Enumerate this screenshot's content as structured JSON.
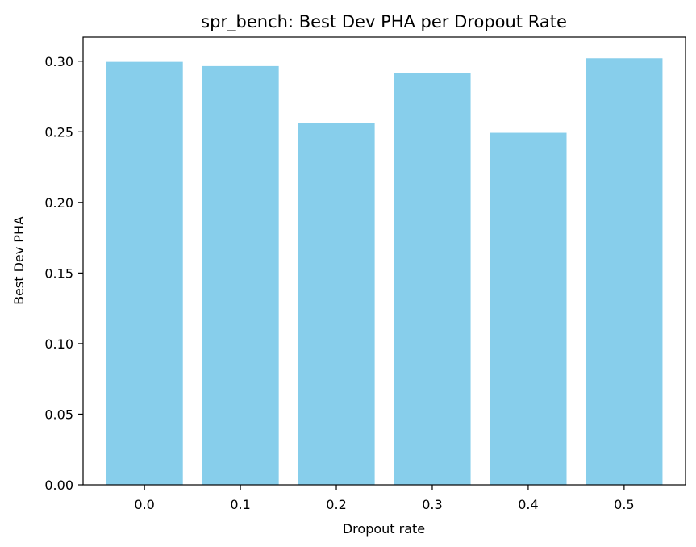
{
  "chart_data": {
    "type": "bar",
    "title": "spr_bench: Best Dev PHA per Dropout Rate",
    "xlabel": "Dropout rate",
    "ylabel": "Best Dev PHA",
    "categories": [
      "0.0",
      "0.1",
      "0.2",
      "0.3",
      "0.4",
      "0.5"
    ],
    "values": [
      0.2995,
      0.2965,
      0.2562,
      0.2915,
      0.2493,
      0.302
    ],
    "ylim": [
      0,
      0.317
    ],
    "yticks": [
      0.0,
      0.05,
      0.1,
      0.15,
      0.2,
      0.25,
      0.3
    ],
    "ytick_labels": [
      "0.00",
      "0.05",
      "0.10",
      "0.15",
      "0.20",
      "0.25",
      "0.30"
    ],
    "bar_color": "#87CEEB",
    "grid": false
  }
}
